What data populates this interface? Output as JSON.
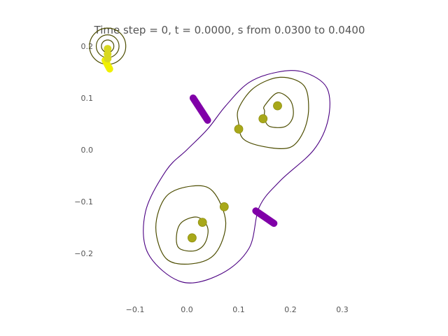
{
  "chart_data": {
    "type": "scatter",
    "title": "Time step = 0, t = 0.0000, s from 0.0300 to 0.0400",
    "xlabel": "",
    "ylabel": "",
    "xlim": [
      -0.15,
      0.35
    ],
    "ylim": [
      -0.3,
      0.22
    ],
    "x_ticks": [
      -0.1,
      0.0,
      0.1,
      0.2,
      0.3
    ],
    "x_tick_labels": [
      "−0.1",
      "0.0",
      "0.1",
      "0.2",
      "0.3"
    ],
    "y_ticks": [
      0.2,
      0.1,
      0.0,
      -0.1,
      -0.2
    ],
    "y_tick_labels": [
      "0.2",
      "0.1",
      "0.0",
      "−0.1",
      "−0.2"
    ],
    "grid": false,
    "colors": {
      "outer_contour": "#4b0082",
      "inner_contour": "#4d4d00",
      "point": "#a8a81a",
      "bar": "#8000a8",
      "highlight": "#f0f000",
      "text": "#555555"
    },
    "outer_contour": [
      [
        0.04,
        0.04
      ],
      [
        0.075,
        0.085
      ],
      [
        0.12,
        0.13
      ],
      [
        0.175,
        0.15
      ],
      [
        0.225,
        0.15
      ],
      [
        0.27,
        0.12
      ],
      [
        0.273,
        0.06
      ],
      [
        0.245,
        0.0
      ],
      [
        0.18,
        -0.06
      ],
      [
        0.14,
        -0.11
      ],
      [
        0.12,
        -0.19
      ],
      [
        0.065,
        -0.24
      ],
      [
        -0.01,
        -0.255
      ],
      [
        -0.075,
        -0.2
      ],
      [
        -0.08,
        -0.12
      ],
      [
        -0.04,
        -0.04
      ],
      [
        0.0,
        0.0
      ]
    ],
    "inner_contours": [
      [
        [
          0.15,
          0.085
        ],
        [
          0.175,
          0.11
        ],
        [
          0.2,
          0.095
        ],
        [
          0.205,
          0.065
        ],
        [
          0.19,
          0.045
        ],
        [
          0.16,
          0.045
        ],
        [
          0.15,
          0.06
        ],
        [
          0.15,
          0.075
        ]
      ],
      [
        [
          0.1,
          0.08
        ],
        [
          0.13,
          0.12
        ],
        [
          0.18,
          0.14
        ],
        [
          0.225,
          0.125
        ],
        [
          0.235,
          0.08
        ],
        [
          0.225,
          0.035
        ],
        [
          0.2,
          0.005
        ],
        [
          0.155,
          0.005
        ],
        [
          0.11,
          0.02
        ],
        [
          0.1,
          0.05
        ]
      ],
      [
        [
          -0.02,
          -0.165
        ],
        [
          -0.01,
          -0.14
        ],
        [
          0.02,
          -0.13
        ],
        [
          0.04,
          -0.15
        ],
        [
          0.035,
          -0.18
        ],
        [
          0.015,
          -0.195
        ],
        [
          -0.015,
          -0.19
        ]
      ],
      [
        [
          -0.06,
          -0.15
        ],
        [
          -0.04,
          -0.09
        ],
        [
          0.01,
          -0.07
        ],
        [
          0.05,
          -0.08
        ],
        [
          0.075,
          -0.14
        ],
        [
          0.055,
          -0.2
        ],
        [
          0.01,
          -0.22
        ],
        [
          -0.04,
          -0.21
        ]
      ]
    ],
    "points": [
      {
        "x": 0.175,
        "y": 0.085
      },
      {
        "x": 0.147,
        "y": 0.06
      },
      {
        "x": 0.1,
        "y": 0.04
      },
      {
        "x": 0.072,
        "y": -0.11
      },
      {
        "x": 0.03,
        "y": -0.14
      },
      {
        "x": 0.01,
        "y": -0.17
      }
    ],
    "bars": [
      {
        "x1": 0.012,
        "y1": 0.1,
        "x2": 0.04,
        "y2": 0.057
      },
      {
        "x1": 0.133,
        "y1": -0.118,
        "x2": 0.168,
        "y2": -0.142
      }
    ],
    "corner_contours": [
      {
        "x": -0.153,
        "y": 0.2,
        "r": 0.012
      },
      {
        "x": -0.153,
        "y": 0.2,
        "r": 0.022
      },
      {
        "x": -0.153,
        "y": 0.2,
        "r": 0.035
      }
    ],
    "corner_points": [
      {
        "x": -0.153,
        "y": 0.195
      },
      {
        "x": -0.153,
        "y": 0.185
      },
      {
        "x": -0.153,
        "y": 0.176
      }
    ],
    "corner_blob": [
      [
        -0.158,
        0.173
      ],
      [
        -0.149,
        0.156
      ]
    ]
  }
}
